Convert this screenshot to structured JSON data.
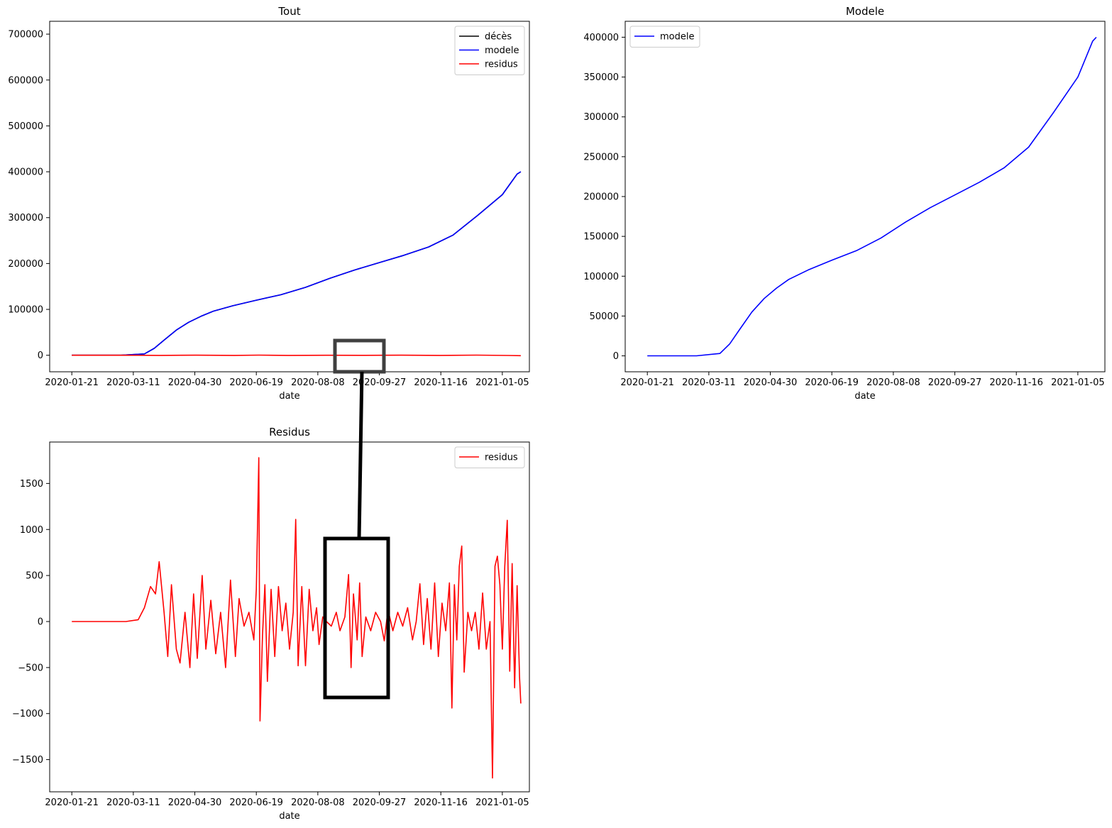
{
  "chart_data": [
    {
      "id": "tout",
      "type": "line",
      "title": "Tout",
      "xlabel": "date",
      "ylabel": "",
      "x_ticks": [
        "2020-01-21",
        "2020-03-11",
        "2020-04-30",
        "2020-06-19",
        "2020-08-08",
        "2020-09-27",
        "2020-11-16",
        "2021-01-05"
      ],
      "y_ticks": [
        0,
        100000,
        200000,
        300000,
        400000,
        500000,
        600000,
        700000
      ],
      "ylim": [
        -36000,
        728000
      ],
      "xlim": [
        "2020-01-03",
        "2021-01-27"
      ],
      "legend_position": "upper right",
      "series": [
        {
          "name": "décès",
          "color": "#000000",
          "points": [
            [
              "2020-01-21",
              0
            ],
            [
              "2020-03-01",
              0
            ],
            [
              "2020-03-20",
              3000
            ],
            [
              "2020-03-28",
              15000
            ],
            [
              "2020-04-05",
              33000
            ],
            [
              "2020-04-15",
              55000
            ],
            [
              "2020-04-25",
              72000
            ],
            [
              "2020-05-05",
              85000
            ],
            [
              "2020-05-15",
              96000
            ],
            [
              "2020-05-31",
              108000
            ],
            [
              "2020-06-19",
              120000
            ],
            [
              "2020-07-09",
              132000
            ],
            [
              "2020-07-29",
              148000
            ],
            [
              "2020-08-18",
              168000
            ],
            [
              "2020-09-07",
              186000
            ],
            [
              "2020-09-27",
              202000
            ],
            [
              "2020-10-17",
              218000
            ],
            [
              "2020-11-06",
              236000
            ],
            [
              "2020-11-26",
              262000
            ],
            [
              "2020-12-16",
              305000
            ],
            [
              "2021-01-05",
              350000
            ],
            [
              "2021-01-17",
              395000
            ],
            [
              "2021-01-20",
              400000
            ]
          ]
        },
        {
          "name": "modele",
          "color": "#0000ff",
          "points": [
            [
              "2020-01-21",
              0
            ],
            [
              "2020-03-01",
              0
            ],
            [
              "2020-03-20",
              3000
            ],
            [
              "2020-03-28",
              15000
            ],
            [
              "2020-04-05",
              33000
            ],
            [
              "2020-04-15",
              55000
            ],
            [
              "2020-04-25",
              72000
            ],
            [
              "2020-05-05",
              85000
            ],
            [
              "2020-05-15",
              96000
            ],
            [
              "2020-05-31",
              108000
            ],
            [
              "2020-06-19",
              120000
            ],
            [
              "2020-07-09",
              132000
            ],
            [
              "2020-07-29",
              148000
            ],
            [
              "2020-08-18",
              168000
            ],
            [
              "2020-09-07",
              186000
            ],
            [
              "2020-09-27",
              202000
            ],
            [
              "2020-10-17",
              218000
            ],
            [
              "2020-11-06",
              236000
            ],
            [
              "2020-11-26",
              262000
            ],
            [
              "2020-12-16",
              305000
            ],
            [
              "2021-01-05",
              350000
            ],
            [
              "2021-01-17",
              395000
            ],
            [
              "2021-01-20",
              400000
            ]
          ]
        },
        {
          "name": "residus",
          "color": "#ff0000",
          "points": [
            [
              "2020-01-21",
              0
            ],
            [
              "2020-03-15",
              0
            ],
            [
              "2020-04-01",
              -300
            ],
            [
              "2020-05-01",
              200
            ],
            [
              "2020-06-01",
              -200
            ],
            [
              "2020-06-21",
              300
            ],
            [
              "2020-07-15",
              -200
            ],
            [
              "2020-08-15",
              100
            ],
            [
              "2020-09-15",
              -100
            ],
            [
              "2020-10-15",
              200
            ],
            [
              "2020-11-15",
              -300
            ],
            [
              "2020-12-15",
              400
            ],
            [
              "2021-01-10",
              -500
            ],
            [
              "2021-01-20",
              -900
            ]
          ]
        }
      ]
    },
    {
      "id": "modele",
      "type": "line",
      "title": "Modele",
      "xlabel": "date",
      "ylabel": "",
      "x_ticks": [
        "2020-01-21",
        "2020-03-11",
        "2020-04-30",
        "2020-06-19",
        "2020-08-08",
        "2020-09-27",
        "2020-11-16",
        "2021-01-05"
      ],
      "y_ticks": [
        0,
        50000,
        100000,
        150000,
        200000,
        250000,
        300000,
        350000,
        400000
      ],
      "ylim": [
        -20000,
        420000
      ],
      "xlim": [
        "2020-01-03",
        "2021-01-27"
      ],
      "legend_position": "upper left",
      "series": [
        {
          "name": "modele",
          "color": "#0000ff",
          "points": [
            [
              "2020-01-21",
              0
            ],
            [
              "2020-03-01",
              0
            ],
            [
              "2020-03-20",
              3000
            ],
            [
              "2020-03-28",
              15000
            ],
            [
              "2020-04-05",
              33000
            ],
            [
              "2020-04-15",
              55000
            ],
            [
              "2020-04-25",
              72000
            ],
            [
              "2020-05-05",
              85000
            ],
            [
              "2020-05-15",
              96000
            ],
            [
              "2020-05-31",
              108000
            ],
            [
              "2020-06-19",
              120000
            ],
            [
              "2020-07-09",
              132000
            ],
            [
              "2020-07-29",
              148000
            ],
            [
              "2020-08-18",
              168000
            ],
            [
              "2020-09-07",
              186000
            ],
            [
              "2020-09-27",
              202000
            ],
            [
              "2020-10-17",
              218000
            ],
            [
              "2020-11-06",
              236000
            ],
            [
              "2020-11-26",
              262000
            ],
            [
              "2020-12-16",
              305000
            ],
            [
              "2021-01-05",
              350000
            ],
            [
              "2021-01-17",
              395000
            ],
            [
              "2021-01-20",
              400000
            ]
          ]
        }
      ]
    },
    {
      "id": "residus",
      "type": "line",
      "title": "Residus",
      "xlabel": "date",
      "ylabel": "",
      "x_ticks": [
        "2020-01-21",
        "2020-03-11",
        "2020-04-30",
        "2020-06-19",
        "2020-08-08",
        "2020-09-27",
        "2020-11-16",
        "2021-01-05"
      ],
      "y_ticks": [
        -1500,
        -1000,
        -500,
        0,
        500,
        1000,
        1500
      ],
      "ylim": [
        -1850,
        1950
      ],
      "xlim": [
        "2020-01-03",
        "2021-01-27"
      ],
      "legend_position": "upper right",
      "series": [
        {
          "name": "residus",
          "color": "#ff0000",
          "points": [
            [
              "2020-01-21",
              0
            ],
            [
              "2020-03-05",
              0
            ],
            [
              "2020-03-15",
              20
            ],
            [
              "2020-03-20",
              150
            ],
            [
              "2020-03-25",
              380
            ],
            [
              "2020-03-29",
              300
            ],
            [
              "2020-04-01",
              650
            ],
            [
              "2020-04-05",
              100
            ],
            [
              "2020-04-08",
              -380
            ],
            [
              "2020-04-11",
              400
            ],
            [
              "2020-04-15",
              -300
            ],
            [
              "2020-04-18",
              -450
            ],
            [
              "2020-04-22",
              100
            ],
            [
              "2020-04-26",
              -500
            ],
            [
              "2020-04-29",
              300
            ],
            [
              "2020-05-02",
              -400
            ],
            [
              "2020-05-06",
              500
            ],
            [
              "2020-05-09",
              -300
            ],
            [
              "2020-05-13",
              230
            ],
            [
              "2020-05-17",
              -350
            ],
            [
              "2020-05-21",
              100
            ],
            [
              "2020-05-25",
              -500
            ],
            [
              "2020-05-29",
              450
            ],
            [
              "2020-06-02",
              -380
            ],
            [
              "2020-06-05",
              250
            ],
            [
              "2020-06-09",
              -50
            ],
            [
              "2020-06-13",
              100
            ],
            [
              "2020-06-17",
              -200
            ],
            [
              "2020-06-19",
              350
            ],
            [
              "2020-06-21",
              1780
            ],
            [
              "2020-06-22",
              -1080
            ],
            [
              "2020-06-24",
              -150
            ],
            [
              "2020-06-26",
              400
            ],
            [
              "2020-06-28",
              -650
            ],
            [
              "2020-07-01",
              350
            ],
            [
              "2020-07-04",
              -380
            ],
            [
              "2020-07-07",
              380
            ],
            [
              "2020-07-10",
              -100
            ],
            [
              "2020-07-13",
              200
            ],
            [
              "2020-07-16",
              -300
            ],
            [
              "2020-07-19",
              100
            ],
            [
              "2020-07-21",
              1110
            ],
            [
              "2020-07-23",
              -480
            ],
            [
              "2020-07-26",
              380
            ],
            [
              "2020-07-29",
              -480
            ],
            [
              "2020-08-01",
              350
            ],
            [
              "2020-08-04",
              -100
            ],
            [
              "2020-08-07",
              150
            ],
            [
              "2020-08-09",
              -250
            ],
            [
              "2020-08-12",
              50
            ],
            [
              "2020-08-15",
              0
            ],
            [
              "2020-08-19",
              -50
            ],
            [
              "2020-08-23",
              100
            ],
            [
              "2020-08-26",
              -100
            ],
            [
              "2020-08-30",
              50
            ],
            [
              "2020-09-02",
              510
            ],
            [
              "2020-09-04",
              -500
            ],
            [
              "2020-09-06",
              300
            ],
            [
              "2020-09-09",
              -200
            ],
            [
              "2020-09-11",
              420
            ],
            [
              "2020-09-13",
              -380
            ],
            [
              "2020-09-16",
              50
            ],
            [
              "2020-09-20",
              -100
            ],
            [
              "2020-09-24",
              100
            ],
            [
              "2020-09-28",
              0
            ],
            [
              "2020-10-01",
              -210
            ],
            [
              "2020-10-04",
              130
            ],
            [
              "2020-10-08",
              -100
            ],
            [
              "2020-10-12",
              100
            ],
            [
              "2020-10-16",
              -50
            ],
            [
              "2020-10-20",
              150
            ],
            [
              "2020-10-24",
              -200
            ],
            [
              "2020-10-27",
              0
            ],
            [
              "2020-10-30",
              410
            ],
            [
              "2020-11-02",
              -250
            ],
            [
              "2020-11-05",
              250
            ],
            [
              "2020-11-08",
              -300
            ],
            [
              "2020-11-11",
              420
            ],
            [
              "2020-11-14",
              -380
            ],
            [
              "2020-11-17",
              200
            ],
            [
              "2020-11-20",
              -100
            ],
            [
              "2020-11-23",
              420
            ],
            [
              "2020-11-25",
              -940
            ],
            [
              "2020-11-27",
              400
            ],
            [
              "2020-11-29",
              -200
            ],
            [
              "2020-12-01",
              600
            ],
            [
              "2020-12-03",
              820
            ],
            [
              "2020-12-05",
              -550
            ],
            [
              "2020-12-08",
              100
            ],
            [
              "2020-12-11",
              -100
            ],
            [
              "2020-12-14",
              100
            ],
            [
              "2020-12-17",
              -300
            ],
            [
              "2020-12-20",
              310
            ],
            [
              "2020-12-23",
              -300
            ],
            [
              "2020-12-26",
              0
            ],
            [
              "2020-12-28",
              -1700
            ],
            [
              "2020-12-30",
              600
            ],
            [
              "2021-01-01",
              710
            ],
            [
              "2021-01-03",
              400
            ],
            [
              "2021-01-05",
              -300
            ],
            [
              "2021-01-07",
              600
            ],
            [
              "2021-01-09",
              1100
            ],
            [
              "2021-01-11",
              -540
            ],
            [
              "2021-01-13",
              630
            ],
            [
              "2021-01-15",
              -720
            ],
            [
              "2021-01-17",
              390
            ],
            [
              "2021-01-19",
              -600
            ],
            [
              "2021-01-20",
              -890
            ]
          ]
        }
      ]
    }
  ]
}
